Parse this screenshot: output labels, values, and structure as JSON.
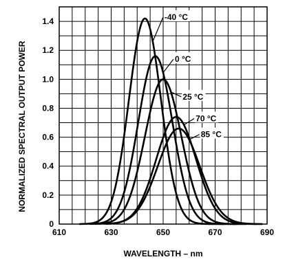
{
  "chart_data": {
    "type": "line",
    "title": "",
    "xlabel": "WAVELENGTH – nm",
    "ylabel": "NORMALIZED SPECTRAL OUTPUT POWER",
    "xlim": [
      610,
      690
    ],
    "ylim": [
      0,
      1.5
    ],
    "x_ticks": [
      610,
      630,
      650,
      670,
      690
    ],
    "y_ticks": [
      0,
      0.2,
      0.4,
      0.6,
      0.8,
      1.0,
      1.2,
      1.4
    ],
    "x_tick_labels": [
      "610",
      "630",
      "650",
      "670",
      "690"
    ],
    "y_tick_labels": [
      "0",
      "0.2",
      "0.4",
      "0.6",
      "0.8",
      "1.0",
      "1.2",
      "1.4"
    ],
    "x_minor_step": 5,
    "y_minor_step": 0.1,
    "grid": true,
    "legend": "callouts",
    "series": [
      {
        "name": "-40 °C",
        "peak_nm": 643,
        "peak": 1.42,
        "fwhm": 14.5,
        "start_nm": 618,
        "end_nm": 673,
        "label_at_nm": 646,
        "label_value": 1.41
      },
      {
        "name": "0 °C",
        "peak_nm": 647,
        "peak": 1.16,
        "fwhm": 15.5,
        "start_nm": 622,
        "end_nm": 678,
        "label_at_nm": 650,
        "label_value": 1.12
      },
      {
        "name": "25 °C",
        "peak_nm": 650,
        "peak": 1.0,
        "fwhm": 16.5,
        "start_nm": 624,
        "end_nm": 682,
        "label_at_nm": 653,
        "label_value": 0.86
      },
      {
        "name": "70 °C",
        "peak_nm": 655,
        "peak": 0.74,
        "fwhm": 18.0,
        "start_nm": 628,
        "end_nm": 686,
        "label_at_nm": 658,
        "label_value": 0.71
      },
      {
        "name": "85 °C",
        "peak_nm": 656,
        "peak": 0.66,
        "fwhm": 19.0,
        "start_nm": 630,
        "end_nm": 688,
        "label_at_nm": 660,
        "label_value": 0.6
      }
    ]
  }
}
